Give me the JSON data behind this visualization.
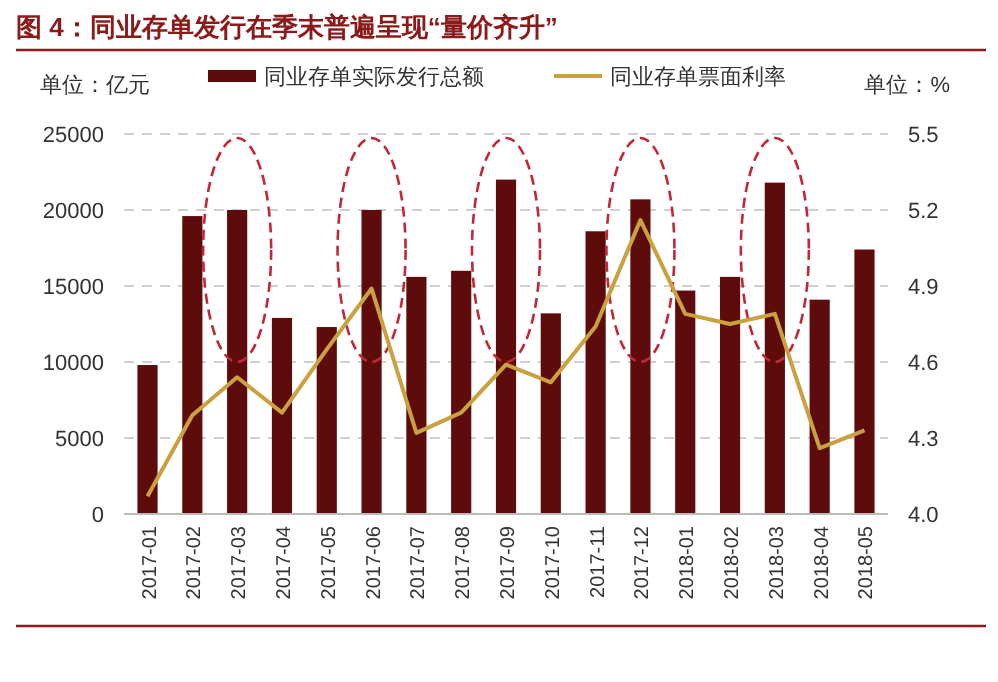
{
  "chart_data": {
    "type": "bar",
    "title": "图 4：同业存单发行在季末普遍呈现“量价齐升”",
    "ylabel": "单位：亿元",
    "y2label": "单位：%",
    "categories": [
      "2017-01",
      "2017-02",
      "2017-03",
      "2017-04",
      "2017-05",
      "2017-06",
      "2017-07",
      "2017-08",
      "2017-09",
      "2017-10",
      "2017-11",
      "2017-12",
      "2018-01",
      "2018-02",
      "2018-03",
      "2018-04",
      "2018-05"
    ],
    "series": [
      {
        "name": "同业存单实际发行总额",
        "color": "#5e0b0b",
        "values": [
          9800,
          19600,
          20000,
          12900,
          12300,
          20000,
          15600,
          16000,
          22000,
          13200,
          18600,
          20700,
          14700,
          15600,
          21800,
          14100,
          17400
        ]
      },
      {
        "name": "同业存单票面利率",
        "type": "line",
        "axis": "y2",
        "color": "#c9a13f",
        "values": [
          4.07,
          4.39,
          4.54,
          4.4,
          4.65,
          4.89,
          4.32,
          4.4,
          4.59,
          4.52,
          4.74,
          5.16,
          4.79,
          4.75,
          4.79,
          4.26,
          4.33
        ]
      }
    ],
    "ylim": [
      0,
      25000
    ],
    "yticks": [
      0,
      5000,
      10000,
      15000,
      20000,
      25000
    ],
    "y2lim": [
      4.0,
      5.5
    ],
    "y2ticks": [
      {
        "value": 4.0,
        "label": "4.0"
      },
      4.3,
      4.6,
      4.9,
      5.2,
      5.5
    ],
    "grid": "y",
    "legend": "top"
  }
}
